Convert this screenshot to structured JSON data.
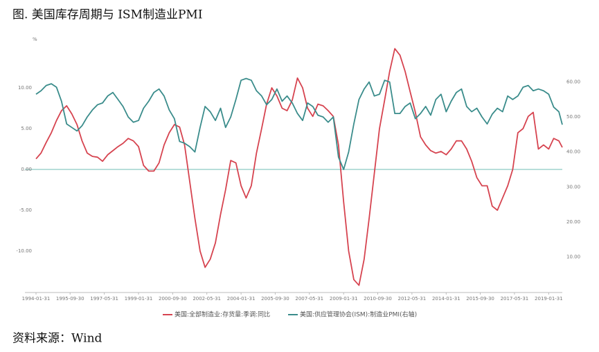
{
  "title": "图. 美国库存周期与 ISM制造业PMI",
  "source": "资料来源：Wind",
  "chart_data": {
    "type": "line",
    "y_unit": "%",
    "x": [
      "1994-01-31",
      "1994-04-30",
      "1994-07-31",
      "1994-10-31",
      "1995-01-31",
      "1995-04-30",
      "1995-07-31",
      "1995-10-31",
      "1996-01-31",
      "1996-04-30",
      "1996-07-31",
      "1996-10-31",
      "1997-01-31",
      "1997-04-30",
      "1997-07-31",
      "1997-10-31",
      "1998-01-31",
      "1998-04-30",
      "1998-07-31",
      "1998-10-31",
      "1999-01-31",
      "1999-04-30",
      "1999-07-31",
      "1999-10-31",
      "2000-01-31",
      "2000-04-30",
      "2000-07-31",
      "2000-10-31",
      "2001-01-31",
      "2001-04-30",
      "2001-07-31",
      "2001-10-31",
      "2002-01-31",
      "2002-04-30",
      "2002-07-31",
      "2002-10-31",
      "2003-01-31",
      "2003-04-30",
      "2003-07-31",
      "2003-10-31",
      "2004-01-31",
      "2004-04-30",
      "2004-07-31",
      "2004-10-31",
      "2005-01-31",
      "2005-04-30",
      "2005-07-31",
      "2005-10-31",
      "2006-01-31",
      "2006-04-30",
      "2006-07-31",
      "2006-10-31",
      "2007-01-31",
      "2007-04-30",
      "2007-07-31",
      "2007-10-31",
      "2008-01-31",
      "2008-04-30",
      "2008-07-31",
      "2008-10-31",
      "2009-01-31",
      "2009-04-30",
      "2009-07-31",
      "2009-10-31",
      "2010-01-31",
      "2010-04-30",
      "2010-07-31",
      "2010-10-31",
      "2011-01-31",
      "2011-04-30",
      "2011-07-31",
      "2011-10-31",
      "2012-01-31",
      "2012-04-30",
      "2012-07-31",
      "2012-10-31",
      "2013-01-31",
      "2013-04-30",
      "2013-07-31",
      "2013-10-31",
      "2014-01-31",
      "2014-04-30",
      "2014-07-31",
      "2014-10-31",
      "2015-01-31",
      "2015-04-30",
      "2015-07-31",
      "2015-10-31",
      "2016-01-31",
      "2016-04-30",
      "2016-07-31",
      "2016-10-31",
      "2017-01-31",
      "2017-04-30",
      "2017-07-31",
      "2017-10-31",
      "2018-01-31",
      "2018-04-30",
      "2018-07-31",
      "2018-10-31",
      "2019-01-31",
      "2019-04-30",
      "2019-07-31",
      "2019-09-30"
    ],
    "xticks": [
      "1994-01-31",
      "1995-09-30",
      "1997-05-31",
      "1999-01-31",
      "2000-09-30",
      "2002-05-31",
      "2004-01-31",
      "2005-09-30",
      "2007-05-31",
      "2009-01-31",
      "2010-09-30",
      "2012-05-31",
      "2014-01-31",
      "2015-09-30",
      "2017-05-31",
      "2019-01-31"
    ],
    "ylim": [
      -15,
      15
    ],
    "yticks": [
      {
        "value": -10,
        "label": "-10.00"
      },
      {
        "value": -5,
        "label": "-5.00"
      },
      {
        "value": 0,
        "label": "0.00"
      },
      {
        "value": 5,
        "label": "5.00"
      },
      {
        "value": 10,
        "label": "10.00"
      }
    ],
    "y2lim": [
      0,
      70
    ],
    "y2ticks": [
      {
        "value": 10,
        "label": "10.00"
      },
      {
        "value": 20,
        "label": "20.00"
      },
      {
        "value": 30,
        "label": "30.00"
      },
      {
        "value": 40,
        "label": "40.00"
      },
      {
        "value": 50,
        "label": "50.00"
      },
      {
        "value": 60,
        "label": "60.00"
      }
    ],
    "series": [
      {
        "name": "美国:全部制造业:存货量:季调:同比",
        "color": "#d6434f",
        "values": [
          1.3,
          2.0,
          3.3,
          4.5,
          6.0,
          7.2,
          7.8,
          6.8,
          5.5,
          3.5,
          2.0,
          1.6,
          1.5,
          1.0,
          1.8,
          2.3,
          2.8,
          3.2,
          3.8,
          3.5,
          2.8,
          0.5,
          -0.2,
          -0.2,
          0.8,
          3.0,
          4.5,
          5.5,
          5.2,
          3.0,
          -1.5,
          -6.0,
          -10.0,
          -12.0,
          -11.0,
          -9.0,
          -5.5,
          -2.5,
          1.1,
          0.8,
          -2.0,
          -3.5,
          -2.0,
          2.0,
          5.0,
          8.0,
          10.0,
          9.0,
          7.5,
          7.2,
          8.5,
          11.2,
          10.0,
          7.5,
          6.5,
          8.0,
          7.8,
          7.2,
          6.5,
          3.0,
          -4.0,
          -10.0,
          -13.5,
          -14.2,
          -11.0,
          -6.0,
          -0.5,
          5.0,
          8.5,
          12.0,
          14.8,
          14.0,
          12.0,
          9.5,
          7.0,
          4.0,
          3.0,
          2.3,
          2.0,
          2.2,
          1.8,
          2.5,
          3.5,
          3.5,
          2.5,
          1.0,
          -1.0,
          -2.0,
          -2.0,
          -4.5,
          -5.0,
          -3.5,
          -2.0,
          0.0,
          4.5,
          5.0,
          6.5,
          7.0,
          2.5,
          3.0,
          2.5,
          3.8,
          3.5,
          2.7
        ]
      },
      {
        "name": "美国:供应管理协会(ISM):制造业PMI(右轴)",
        "color": "#3a8c8b",
        "axis": "y2",
        "values": [
          56.5,
          57.5,
          59,
          59.5,
          58.5,
          54.5,
          48,
          47,
          46,
          47.5,
          50,
          52,
          53.5,
          54,
          56,
          57,
          55,
          53,
          50,
          48.5,
          49,
          52.5,
          54.5,
          57,
          58,
          56,
          52,
          49.5,
          43,
          42.5,
          41.5,
          40,
          47,
          53,
          51.5,
          49,
          52.5,
          47,
          50,
          55,
          60.5,
          61,
          60.5,
          57.5,
          56,
          53.5,
          55,
          58,
          54.5,
          56,
          54,
          51,
          49,
          54,
          53,
          50.5,
          50,
          48.5,
          50,
          38.5,
          35,
          40,
          48,
          55,
          58,
          60,
          56,
          56.5,
          60.5,
          60,
          51,
          51,
          53,
          54,
          49.5,
          51,
          53,
          50.5,
          55,
          56.5,
          51.5,
          54.5,
          57,
          58,
          53,
          51.5,
          52.5,
          50,
          48,
          50.8,
          52.5,
          51.5,
          56,
          55,
          56,
          58.5,
          59,
          57.5,
          58,
          57.5,
          56.5,
          52.8,
          51.5,
          47.8
        ]
      }
    ]
  }
}
